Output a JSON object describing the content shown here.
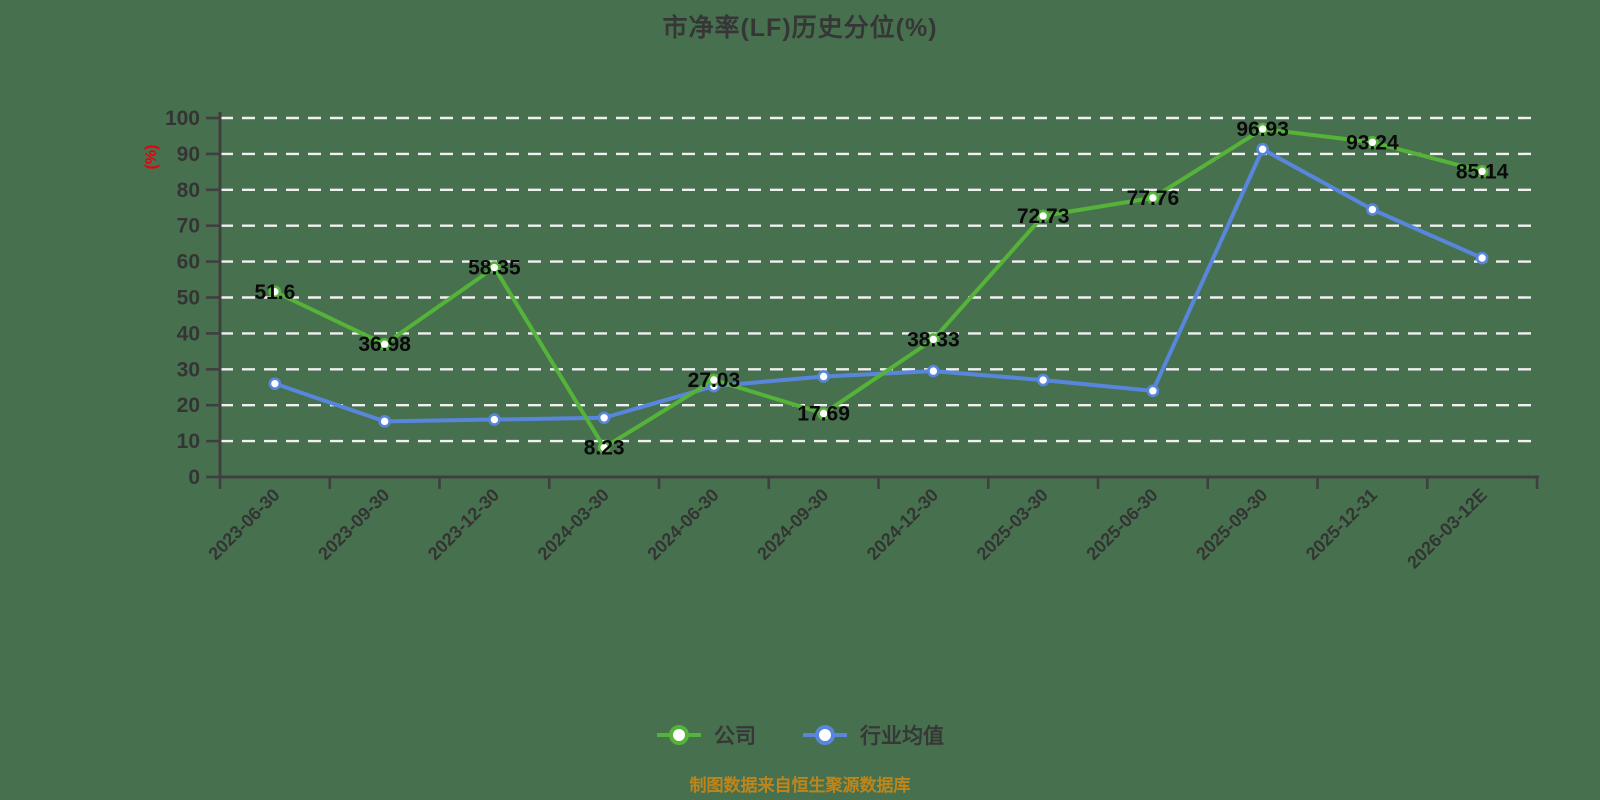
{
  "title": "市净率(LF)历史分位(%)",
  "y_axis_unit": "(%)",
  "footer": "制图数据来自恒生聚源数据库",
  "colors": {
    "background": "#47714E",
    "company_green": "#55b33a",
    "industry_blue": "#5886dc",
    "gridline": "#f0f0f0",
    "axis": "#3f3f3f",
    "title_text": "#363636",
    "tick_text": "#343434",
    "value_label_text": "#0a0a0a",
    "unit_red": "#e8000d",
    "footer_orange": "#bd861c"
  },
  "legend": {
    "items": [
      {
        "label": "公司",
        "color": "#55b33a"
      },
      {
        "label": "行业均值",
        "color": "#5886dc"
      }
    ]
  },
  "chart_data": {
    "type": "line",
    "title": "市净率(LF)历史分位(%)",
    "ylabel": "(%)",
    "ylim": [
      0,
      100
    ],
    "y_ticks": [
      0,
      10,
      20,
      30,
      40,
      50,
      60,
      70,
      80,
      90,
      100
    ],
    "grid": "dashed-horizontal-white",
    "legend_position": "bottom",
    "categories": [
      "2023-06-30",
      "2023-09-30",
      "2023-12-30",
      "2024-03-30",
      "2024-06-30",
      "2024-09-30",
      "2024-12-30",
      "2025-03-30",
      "2025-06-30",
      "2025-09-30",
      "2025-12-31",
      "2026-03-12E"
    ],
    "series": [
      {
        "name": "公司",
        "color": "#55b33a",
        "values": [
          51.6,
          36.98,
          58.35,
          8.23,
          27.03,
          17.69,
          38.33,
          72.73,
          77.76,
          96.93,
          93.24,
          85.14
        ],
        "labels": [
          "51.6",
          "36.98",
          "58.35",
          "8.23",
          "27.03",
          "17.69",
          "38.33",
          "72.73",
          "77.76",
          "96.93",
          "93.24",
          "85.14"
        ],
        "labels_shown": true
      },
      {
        "name": "行业均值",
        "color": "#5886dc",
        "values": [
          26,
          15.5,
          16,
          16.5,
          25.3,
          28,
          29.5,
          27,
          24,
          91.3,
          74.5,
          61
        ],
        "labels_shown": false
      }
    ]
  }
}
